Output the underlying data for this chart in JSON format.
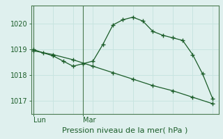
{
  "title": "Pression niveau de la mer( hPa )",
  "background_color": "#dff0ee",
  "grid_color": "#c8e4e0",
  "line_color": "#1a5c28",
  "spine_color": "#4a7a50",
  "line1_x": [
    0,
    0.5,
    1,
    1.5,
    2,
    2.5,
    3,
    3.5,
    4,
    4.5,
    5,
    5.5,
    6,
    6.5,
    7,
    7.5,
    8,
    8.5,
    9
  ],
  "line1_y": [
    1019.0,
    1018.87,
    1018.75,
    1018.55,
    1018.35,
    1018.45,
    1018.55,
    1019.2,
    1019.95,
    1020.15,
    1020.25,
    1020.1,
    1019.7,
    1019.55,
    1019.45,
    1019.35,
    1018.8,
    1018.05,
    1017.1
  ],
  "line2_x": [
    0,
    1,
    2,
    3,
    4,
    5,
    6,
    7,
    8,
    9
  ],
  "line2_y": [
    1018.95,
    1018.8,
    1018.6,
    1018.35,
    1018.1,
    1017.85,
    1017.6,
    1017.4,
    1017.15,
    1016.9
  ],
  "lun_x": 0,
  "mar_x": 2.5,
  "yticks": [
    1017,
    1018,
    1019,
    1020
  ],
  "ylim": [
    1016.5,
    1020.7
  ],
  "xlim": [
    -0.1,
    9.3
  ],
  "figsize": [
    3.2,
    2.0
  ],
  "dpi": 100,
  "label_fontsize": 7.5,
  "tick_fontsize": 7,
  "title_fontsize": 8
}
